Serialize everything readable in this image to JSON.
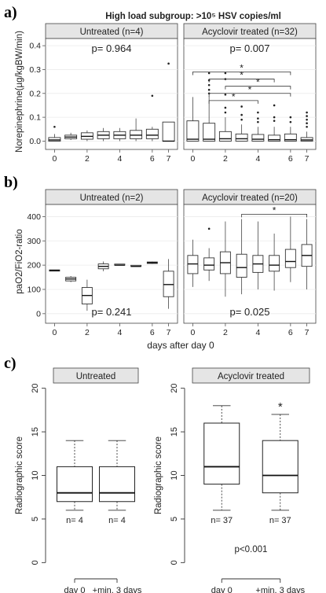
{
  "figure": {
    "title": "High load subgroup: >10⁵ HSV copies/ml",
    "panel_letters": [
      "a)",
      "b)",
      "c)"
    ],
    "shared_xlabel_ab": "days after day 0"
  },
  "chart_data": [
    {
      "id": "a",
      "type": "boxplot",
      "ylabel": "Norepinephrine(µg/kgBW/min)",
      "yticks": [
        0.0,
        0.1,
        0.2,
        0.3,
        0.4
      ],
      "ylim": [
        -0.015,
        0.43
      ],
      "x_positions": [
        0,
        1,
        2,
        3,
        4,
        5,
        6,
        7
      ],
      "x_ticklabels": [
        "0",
        "2",
        "4",
        "6",
        "7"
      ],
      "x_tick_positions": [
        0,
        2,
        4,
        6,
        7
      ],
      "facets": [
        {
          "strip": "Untreated (n=4)",
          "pvalue": "p= 0.964",
          "pvalue_pos": "top",
          "boxes": [
            {
              "x": 0,
              "q1": 0.0,
              "med": 0.005,
              "q3": 0.015,
              "lo": 0.0,
              "hi": 0.03
            },
            {
              "x": 1,
              "q1": 0.01,
              "med": 0.017,
              "q3": 0.025,
              "lo": 0.005,
              "hi": 0.035
            },
            {
              "x": 2,
              "q1": 0.008,
              "med": 0.02,
              "q3": 0.035,
              "lo": 0.0,
              "hi": 0.045
            },
            {
              "x": 3,
              "q1": 0.01,
              "med": 0.025,
              "q3": 0.04,
              "lo": 0.0,
              "hi": 0.055
            },
            {
              "x": 4,
              "q1": 0.01,
              "med": 0.025,
              "q3": 0.04,
              "lo": 0.0,
              "hi": 0.055
            },
            {
              "x": 5,
              "q1": 0.01,
              "med": 0.025,
              "q3": 0.045,
              "lo": 0.0,
              "hi": 0.095
            },
            {
              "x": 6,
              "q1": 0.01,
              "med": 0.025,
              "q3": 0.05,
              "lo": 0.0,
              "hi": 0.06
            },
            {
              "x": 7,
              "q1": 0.0,
              "med": 0.0,
              "q3": 0.08,
              "lo": 0.0,
              "hi": 0.08
            }
          ],
          "outliers": [
            [
              0,
              0.06
            ],
            [
              6,
              0.19
            ],
            [
              7,
              0.325
            ]
          ]
        },
        {
          "strip": "Acyclovir treated (n=32)",
          "pvalue": "p= 0.007",
          "pvalue_pos": "top",
          "boxes": [
            {
              "x": 0,
              "q1": 0.0,
              "med": 0.008,
              "q3": 0.085,
              "lo": 0.0,
              "hi": 0.185
            },
            {
              "x": 1,
              "q1": 0.0,
              "med": 0.008,
              "q3": 0.075,
              "lo": 0.0,
              "hi": 0.19
            },
            {
              "x": 2,
              "q1": 0.0,
              "med": 0.01,
              "q3": 0.04,
              "lo": 0.0,
              "hi": 0.1
            },
            {
              "x": 3,
              "q1": 0.0,
              "med": 0.01,
              "q3": 0.03,
              "lo": 0.0,
              "hi": 0.07
            },
            {
              "x": 4,
              "q1": 0.0,
              "med": 0.008,
              "q3": 0.028,
              "lo": 0.0,
              "hi": 0.06
            },
            {
              "x": 5,
              "q1": 0.0,
              "med": 0.006,
              "q3": 0.025,
              "lo": 0.0,
              "hi": 0.06
            },
            {
              "x": 6,
              "q1": 0.0,
              "med": 0.006,
              "q3": 0.03,
              "lo": 0.0,
              "hi": 0.06
            },
            {
              "x": 7,
              "q1": 0.0,
              "med": 0.005,
              "q3": 0.015,
              "lo": 0.0,
              "hi": 0.04
            }
          ],
          "outliers": [
            [
              1,
              0.2
            ],
            [
              1,
              0.215
            ],
            [
              1,
              0.235
            ],
            [
              1,
              0.255
            ],
            [
              1,
              0.285
            ],
            [
              2,
              0.12
            ],
            [
              2,
              0.14
            ],
            [
              2,
              0.195
            ],
            [
              2,
              0.26
            ],
            [
              2,
              0.285
            ],
            [
              3,
              0.09
            ],
            [
              3,
              0.11
            ],
            [
              3,
              0.145
            ],
            [
              4,
              0.08
            ],
            [
              4,
              0.095
            ],
            [
              4,
              0.12
            ],
            [
              5,
              0.085
            ],
            [
              5,
              0.1
            ],
            [
              5,
              0.15
            ],
            [
              6,
              0.08
            ],
            [
              6,
              0.1
            ],
            [
              7,
              0.06
            ],
            [
              7,
              0.075
            ],
            [
              7,
              0.09
            ],
            [
              7,
              0.105
            ],
            [
              7,
              0.12
            ]
          ],
          "brackets": [
            {
              "from": 0,
              "to": 6,
              "y": 0.29,
              "label": "*"
            },
            {
              "from": 1,
              "to": 5,
              "y": 0.26,
              "label": "*"
            },
            {
              "from": 2,
              "to": 6,
              "y": 0.23,
              "label": "*"
            },
            {
              "from": 1,
              "to": 6,
              "y": 0.2,
              "label": "*"
            },
            {
              "from": 1,
              "to": 4,
              "y": 0.17,
              "label": "*"
            }
          ]
        }
      ]
    },
    {
      "id": "b",
      "type": "boxplot",
      "ylabel": "paO2/FiO2-ratio",
      "yticks": [
        0,
        100,
        200,
        300,
        400
      ],
      "ylim": [
        -20,
        450
      ],
      "x_positions": [
        0,
        1,
        2,
        3,
        4,
        5,
        6,
        7
      ],
      "x_ticklabels": [
        "0",
        "2",
        "4",
        "6",
        "7"
      ],
      "x_tick_positions": [
        0,
        2,
        4,
        6,
        7
      ],
      "xlabel": "days after day 0",
      "facets": [
        {
          "strip": "Untreated (n=2)",
          "pvalue": "p= 0.241",
          "pvalue_pos": "bottom",
          "boxes": [
            {
              "x": 0,
              "q1": 178,
              "med": 178,
              "q3": 178,
              "lo": 178,
              "hi": 178
            },
            {
              "x": 1,
              "q1": 135,
              "med": 143,
              "q3": 150,
              "lo": 130,
              "hi": 155
            },
            {
              "x": 2,
              "q1": 40,
              "med": 75,
              "q3": 108,
              "lo": 12,
              "hi": 140
            },
            {
              "x": 3,
              "q1": 185,
              "med": 195,
              "q3": 205,
              "lo": 175,
              "hi": 215
            },
            {
              "x": 4,
              "q1": 198,
              "med": 200,
              "q3": 202,
              "lo": 198,
              "hi": 202
            },
            {
              "x": 5,
              "q1": 193,
              "med": 195,
              "q3": 197,
              "lo": 193,
              "hi": 197
            },
            {
              "x": 6,
              "q1": 207,
              "med": 210,
              "q3": 213,
              "lo": 205,
              "hi": 215
            },
            {
              "x": 7,
              "q1": 70,
              "med": 120,
              "q3": 175,
              "lo": 20,
              "hi": 225
            }
          ],
          "outliers": []
        },
        {
          "strip": "Acyclovir treated (n=20)",
          "pvalue": "p= 0.025",
          "pvalue_pos": "bottom",
          "boxes": [
            {
              "x": 0,
              "q1": 165,
              "med": 205,
              "q3": 240,
              "lo": 110,
              "hi": 305
            },
            {
              "x": 1,
              "q1": 180,
              "med": 200,
              "q3": 230,
              "lo": 135,
              "hi": 270
            },
            {
              "x": 2,
              "q1": 165,
              "med": 210,
              "q3": 255,
              "lo": 70,
              "hi": 380
            },
            {
              "x": 3,
              "q1": 150,
              "med": 190,
              "q3": 245,
              "lo": 80,
              "hi": 390
            },
            {
              "x": 4,
              "q1": 170,
              "med": 205,
              "q3": 240,
              "lo": 100,
              "hi": 380
            },
            {
              "x": 5,
              "q1": 175,
              "med": 200,
              "q3": 240,
              "lo": 95,
              "hi": 330
            },
            {
              "x": 6,
              "q1": 190,
              "med": 215,
              "q3": 265,
              "lo": 130,
              "hi": 400
            },
            {
              "x": 7,
              "q1": 195,
              "med": 240,
              "q3": 285,
              "lo": 100,
              "hi": 390
            }
          ],
          "outliers": [
            [
              1,
              350
            ]
          ],
          "brackets": [
            {
              "from": 3,
              "to": 7,
              "y": 410,
              "label": "*"
            }
          ]
        }
      ]
    },
    {
      "id": "c",
      "type": "boxplot",
      "ylabel": "Radiographic score",
      "yticks": [
        0,
        5,
        10,
        15,
        20
      ],
      "ylim": [
        -0.6,
        20.6
      ],
      "categories": [
        "day 0",
        "+min. 3 days"
      ],
      "facets": [
        {
          "strip": "Untreated",
          "boxes": [
            {
              "x": 0,
              "q1": 7,
              "med": 8,
              "q3": 11,
              "lo": 6,
              "hi": 14
            },
            {
              "x": 1,
              "q1": 7,
              "med": 8,
              "q3": 11,
              "lo": 6,
              "hi": 14
            }
          ],
          "n_labels": [
            "n= 4",
            "n= 4"
          ],
          "pvalue": "",
          "star": ""
        },
        {
          "strip": "Acyclovir treated",
          "boxes": [
            {
              "x": 0,
              "q1": 9,
              "med": 11,
              "q3": 16,
              "lo": 6,
              "hi": 18
            },
            {
              "x": 1,
              "q1": 8,
              "med": 10,
              "q3": 14,
              "lo": 6,
              "hi": 17
            }
          ],
          "n_labels": [
            "n= 37",
            "n= 37"
          ],
          "pvalue": "p<0.001",
          "star": "*"
        }
      ]
    }
  ]
}
